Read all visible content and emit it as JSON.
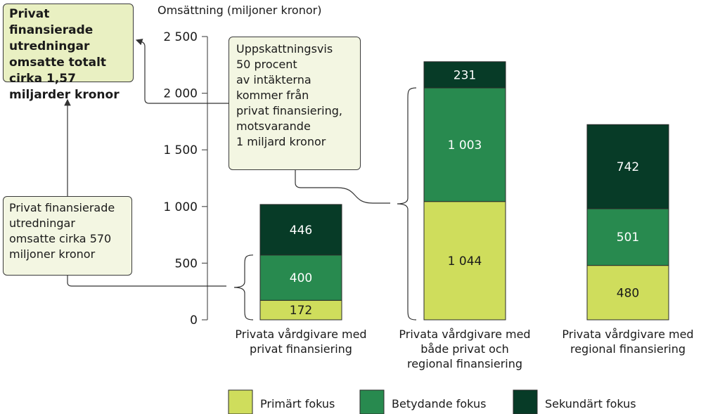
{
  "chart_data": {
    "type": "bar",
    "stacked": true,
    "ylabel": "Omsättning (miljoner kronor)",
    "ylim": [
      0,
      2500
    ],
    "yticks": [
      0,
      500,
      1000,
      1500,
      2000,
      2500
    ],
    "ytick_labels": [
      "0",
      "500",
      "1 000",
      "1 500",
      "2 000",
      "2 500"
    ],
    "categories": [
      [
        "Privata vårdgivare med",
        "privat finansiering"
      ],
      [
        "Privata vårdgivare med",
        "både privat och",
        "regional finansiering"
      ],
      [
        "Privata vårdgivare med",
        "regional finansiering"
      ]
    ],
    "series": [
      {
        "name": "Primärt fokus",
        "color": "#cfdd5c",
        "values": [
          172,
          1044,
          480
        ],
        "labels": [
          "172",
          "1 044",
          "480"
        ]
      },
      {
        "name": "Betydande fokus",
        "color": "#288a4f",
        "values": [
          400,
          1003,
          501
        ],
        "labels": [
          "400",
          "1 003",
          "501"
        ]
      },
      {
        "name": "Sekundärt fokus",
        "color": "#073b27",
        "values": [
          446,
          231,
          742
        ],
        "labels": [
          "446",
          "231",
          "742"
        ]
      }
    ],
    "legend_position": "bottom",
    "grid": false
  },
  "callouts": {
    "total": "Privat finansierade\nutredningar\nomsatte totalt\ncirka 1,57\nmiljarder kronor",
    "both": "Uppskattningsvis\n50 procent\nav intäkterna\nkommer från\nprivat finansiering,\nmotsvarande\n1 miljard kronor",
    "private": "Privat finansierade\nutredningar\nomsatte cirka 570\nmiljoner kronor"
  }
}
